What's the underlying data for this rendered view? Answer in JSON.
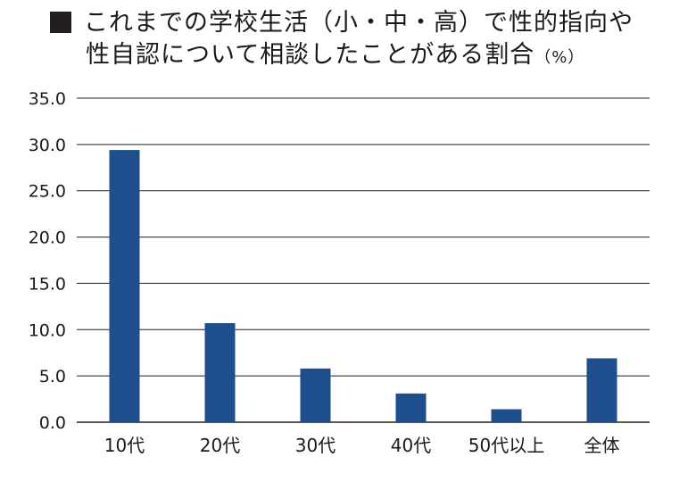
{
  "title": {
    "line1": "これまでの学校生活（小・中・高）で性的指向や",
    "line2": "性自認について相談したことがある割合",
    "unit": "（%）"
  },
  "chart_data": {
    "type": "bar",
    "categories": [
      "10代",
      "20代",
      "30代",
      "40代",
      "50代以上",
      "全体"
    ],
    "values": [
      29.4,
      10.7,
      5.8,
      3.1,
      1.4,
      6.9
    ],
    "yticks": [
      "0.0",
      "5.0",
      "10.0",
      "15.0",
      "20.0",
      "25.0",
      "30.0",
      "35.0"
    ],
    "ylim": [
      0,
      35
    ],
    "grid": true,
    "bar_color": "#1f4e8c",
    "grid_color": "#231f20"
  }
}
